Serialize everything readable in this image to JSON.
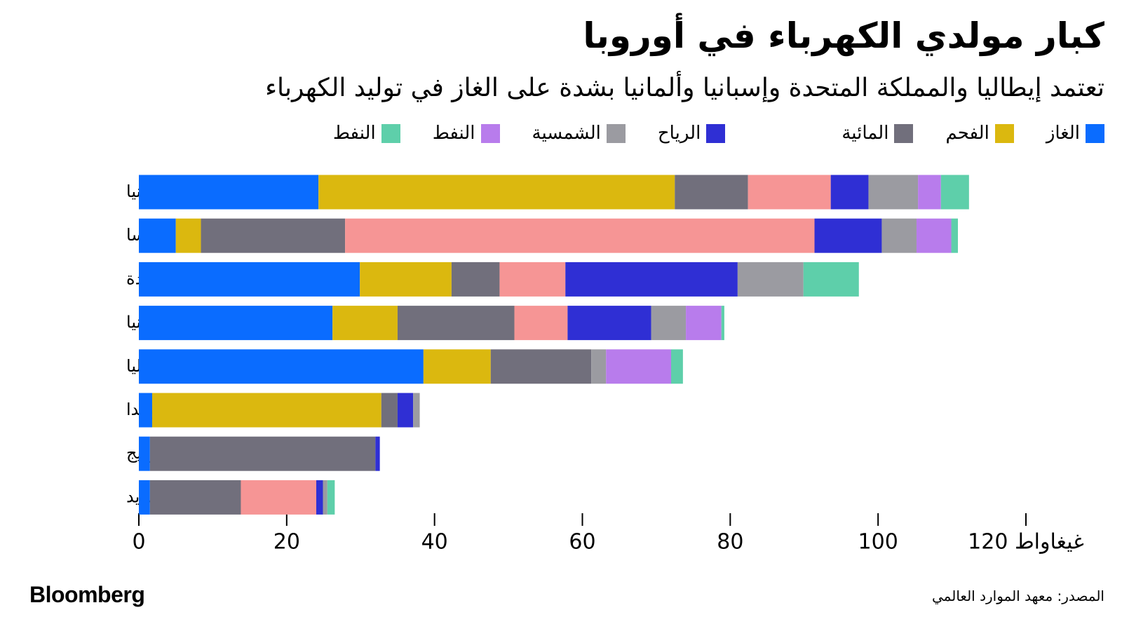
{
  "chart_data": {
    "type": "stacked-barh",
    "title": "كبار مولدي الكهرباء في أوروبا",
    "subtitle": "تعتمد إيطاليا والمملكة المتحدة وإسبانيا وألمانيا بشدة على الغاز في توليد الكهرباء",
    "source": "المصدر: معهد الموارد العالمي",
    "brand": "Bloomberg",
    "categories": [
      "ألمانيا",
      "فرنسا",
      "المملكة المتحدة",
      "إسبانيا",
      "إيطاليا",
      "بولندا",
      "النرويج",
      "السويد"
    ],
    "series": [
      {
        "name": "الغاز",
        "color": "#0a6cff",
        "values": [
          24.3,
          5.0,
          29.9,
          26.2,
          38.5,
          1.8,
          1.5,
          1.5
        ]
      },
      {
        "name": "الفحم",
        "color": "#dbb80f",
        "values": [
          48.2,
          3.4,
          12.4,
          8.8,
          9.1,
          31.0,
          0,
          0
        ]
      },
      {
        "name": "المائية",
        "color": "#716f7c",
        "values": [
          9.9,
          19.5,
          6.5,
          15.8,
          13.6,
          2.2,
          30.5,
          12.3
        ]
      },
      {
        "name": null,
        "color": "#f69595",
        "values": [
          11.2,
          63.5,
          8.9,
          7.2,
          0,
          0,
          0,
          10.2
        ]
      },
      {
        "name": "الرياح",
        "color": "#2f2fd4",
        "values": [
          5.1,
          9.1,
          23.3,
          11.3,
          0,
          2.1,
          0.6,
          0.9
        ]
      },
      {
        "name": "الشمسية",
        "color": "#9b9ba1",
        "values": [
          6.7,
          4.7,
          8.9,
          4.7,
          2.0,
          0.9,
          0,
          0.6
        ]
      },
      {
        "name": "النفط",
        "color": "#b87cec",
        "values": [
          3.1,
          4.7,
          0,
          4.8,
          8.8,
          0,
          0,
          0
        ]
      },
      {
        "name": "النفط",
        "color": "#5ecfaa",
        "values": [
          3.8,
          0.9,
          7.5,
          0.4,
          1.6,
          0,
          0,
          1.0
        ]
      }
    ],
    "xlim": [
      0,
      120
    ],
    "xticks": [
      0,
      20,
      40,
      60,
      80,
      100,
      {
        "value": 120,
        "label": "120 غيغاواط"
      }
    ],
    "grid": false
  }
}
